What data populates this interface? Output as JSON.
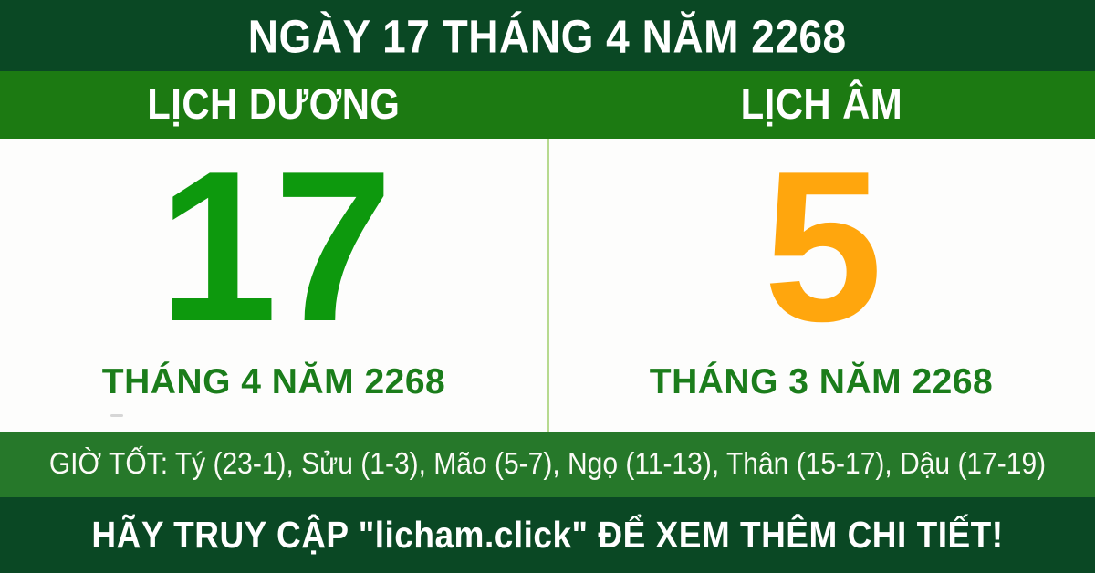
{
  "header": {
    "title": "NGÀY 17 THÁNG 4 NĂM 2268"
  },
  "columns": {
    "solar": {
      "label": "LỊCH DƯƠNG",
      "day": "17",
      "month_line": "THÁNG 4 NĂM 2268"
    },
    "lunar": {
      "label": "LỊCH ÂM",
      "day": "5",
      "month_line": "THÁNG 3 NĂM 2268"
    }
  },
  "good_hours": {
    "text": "GIỜ TỐT: Tý (23-1), Sửu (1-3), Mão (5-7), Ngọ (11-13), Thân (15-17), Dậu (17-19)"
  },
  "footer": {
    "text": "HÃY TRUY CẬP \"licham.click\" ĐỂ XEM THÊM CHI TIẾT!"
  },
  "colors": {
    "dark_green_bars": "#0a4824",
    "header_green_bar": "#1c7a12",
    "good_hours_green_bar": "#26782a",
    "solar_day_green": "#0d990d",
    "lunar_day_orange": "#ffa60d",
    "month_text_green": "#1b7d1b",
    "divider_pale_green": "#b7da8f",
    "text_white": "#ffffff",
    "body_background": "#fdfdfc"
  }
}
